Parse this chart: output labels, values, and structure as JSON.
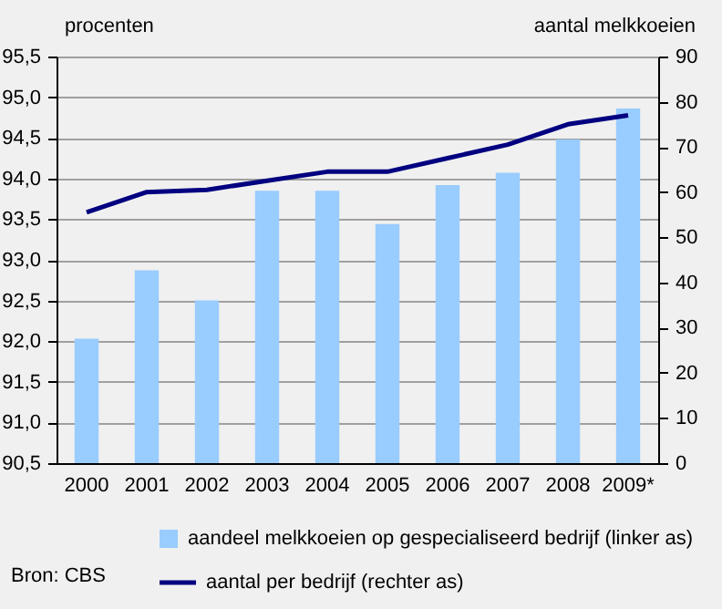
{
  "chart_data": {
    "type": "bar",
    "ylabel": "procenten",
    "y2label": "aantal melkkoeien",
    "categories": [
      "2000",
      "2001",
      "2002",
      "2003",
      "2004",
      "2005",
      "2006",
      "2007",
      "2008",
      "2009*"
    ],
    "series": [
      {
        "name": "aandeel melkkoeien op gespecialiseerd bedrijf (linker as)",
        "color": "#99ccff",
        "values": [
          92.03,
          92.87,
          92.5,
          93.85,
          93.85,
          93.44,
          93.92,
          94.07,
          94.48,
          94.86
        ]
      },
      {
        "name": "aantal per bedrijf (rechter as)",
        "type": "line",
        "axis": "y2",
        "color": "#000080",
        "values": [
          55.5,
          60,
          60.5,
          62.5,
          64.5,
          64.5,
          67.5,
          70.5,
          75,
          77
        ]
      }
    ],
    "ylim": [
      90.5,
      95.5
    ],
    "yticks": [
      {
        "value": 90.5,
        "label": "90,5"
      },
      {
        "value": 91,
        "label": "91,0"
      },
      {
        "value": 91.5,
        "label": "91,5"
      },
      {
        "value": 92,
        "label": "92,0"
      },
      {
        "value": 92.5,
        "label": "92,5"
      },
      {
        "value": 93,
        "label": "93,0"
      },
      {
        "value": 93.5,
        "label": "93,5"
      },
      {
        "value": 94,
        "label": "94,0"
      },
      {
        "value": 94.5,
        "label": "94,5"
      },
      {
        "value": 95,
        "label": "95,0"
      },
      {
        "value": 95.5,
        "label": "95,5"
      }
    ],
    "y2lim": [
      0,
      90
    ],
    "y2ticks": [
      0,
      10,
      20,
      30,
      40,
      50,
      60,
      70,
      80,
      90
    ],
    "grid": "y",
    "legend": "bottom",
    "annotations": [
      "Bron: CBS"
    ]
  }
}
